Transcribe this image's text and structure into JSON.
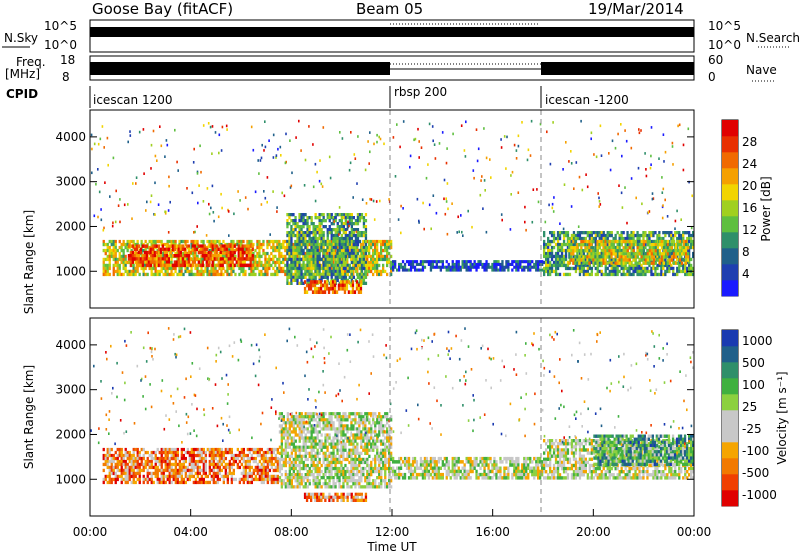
{
  "header": {
    "station": "Goose Bay (fitACF)",
    "beam": "Beam 05",
    "date": "19/Mar/2014"
  },
  "status_panels": {
    "nsky": {
      "label": "N.Sky",
      "ticks": [
        "10^5",
        "10^0"
      ]
    },
    "nsearch": {
      "label": "N.Search",
      "ticks": [
        "10^5",
        "10^0"
      ]
    },
    "freq": {
      "label_line1": "Freq.",
      "label_line2": "[MHz]",
      "ticks": [
        "18",
        "8"
      ]
    },
    "nave": {
      "label": "Nave",
      "ticks": [
        "60",
        "0"
      ]
    },
    "cpid": {
      "label": "CPID",
      "segments": [
        {
          "name": "icescan 1200",
          "start_hour": 0,
          "end_hour": 12
        },
        {
          "name": "rbsp 200",
          "start_hour": 12,
          "end_hour": 18
        },
        {
          "name": "icescan -1200",
          "start_hour": 18,
          "end_hour": 24
        }
      ]
    }
  },
  "chart_data": [
    {
      "type": "heatmap",
      "name": "power",
      "ylabel": "Slant Range [km]",
      "y_ticks": [
        "1000",
        "2000",
        "3000",
        "4000"
      ],
      "ylim": [
        180,
        4600
      ],
      "xlim_hours": [
        0,
        24
      ],
      "colorbar": {
        "label": "Power [dB]",
        "ticks": [
          "4",
          "8",
          "12",
          "16",
          "20",
          "24",
          "28"
        ]
      },
      "colors": [
        "#1a1aff",
        "#1f3fb0",
        "#20608a",
        "#2f8f6a",
        "#5fbf40",
        "#a0d020",
        "#f2d400",
        "#f5a000",
        "#f06a00",
        "#e83000",
        "#e00000"
      ],
      "bands": [
        {
          "x0": 0.5,
          "x1": 12,
          "y0": 900,
          "y1": 1700,
          "level": 0.55
        },
        {
          "x0": 1.5,
          "x1": 6.5,
          "y0": 1100,
          "y1": 1600,
          "level": 0.85
        },
        {
          "x0": 7.8,
          "x1": 11,
          "y0": 700,
          "y1": 2300,
          "level": 0.35
        },
        {
          "x0": 8.5,
          "x1": 10.8,
          "y0": 500,
          "y1": 800,
          "level": 0.8
        },
        {
          "x0": 12,
          "x1": 18,
          "y0": 1000,
          "y1": 1250,
          "level": 0.15
        },
        {
          "x0": 18,
          "x1": 24,
          "y0": 900,
          "y1": 1900,
          "level": 0.35
        },
        {
          "x0": 19,
          "x1": 23.8,
          "y0": 1150,
          "y1": 1700,
          "level": 0.55
        }
      ]
    },
    {
      "type": "heatmap",
      "name": "velocity",
      "ylabel": "Slant Range [km]",
      "y_ticks": [
        "1000",
        "2000",
        "3000",
        "4000"
      ],
      "ylim": [
        180,
        4600
      ],
      "xlim_hours": [
        0,
        24
      ],
      "x_ticks": [
        "00:00",
        "04:00",
        "08:00",
        "12:00",
        "16:00",
        "20:00",
        "00:00"
      ],
      "xlabel": "Time UT",
      "colorbar": {
        "label": "Velocity [m s⁻¹]",
        "ticks": [
          "1000",
          "500",
          "100",
          "25",
          "-25",
          "-100",
          "-500",
          "-1000"
        ]
      },
      "colors": [
        "#e00000",
        "#f04000",
        "#f27a00",
        "#f5a500",
        "#c8c8c8",
        "#c8c8c8",
        "#8cd040",
        "#40b040",
        "#2f8f6a",
        "#20608a",
        "#1a3ab0"
      ],
      "bands": [
        {
          "x0": 0.5,
          "x1": 7.5,
          "y0": 900,
          "y1": 1700,
          "level": 0.25
        },
        {
          "x0": 7.5,
          "x1": 12,
          "y0": 800,
          "y1": 2500,
          "level": 0.5
        },
        {
          "x0": 8.5,
          "x1": 11,
          "y0": 500,
          "y1": 700,
          "level": 0.25
        },
        {
          "x0": 12,
          "x1": 18,
          "y0": 1000,
          "y1": 1500,
          "level": 0.5
        },
        {
          "x0": 18,
          "x1": 24,
          "y0": 1000,
          "y1": 1900,
          "level": 0.5
        },
        {
          "x0": 20,
          "x1": 24,
          "y0": 1300,
          "y1": 2000,
          "level": 0.7
        }
      ]
    }
  ]
}
